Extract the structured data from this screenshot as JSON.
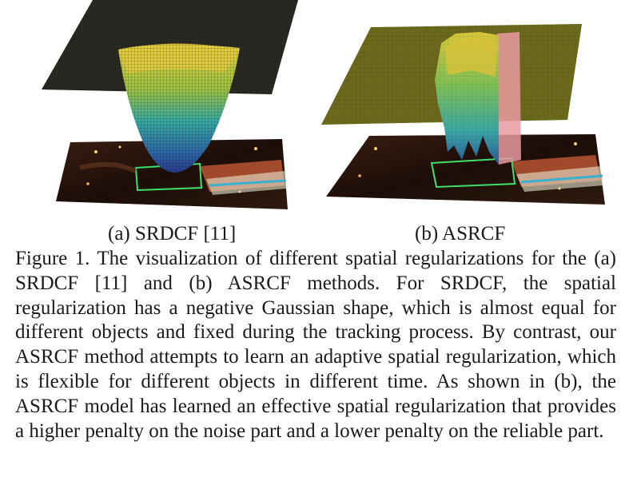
{
  "figure": {
    "panels": [
      {
        "id": "a",
        "label": "(a) SRDCF [11]",
        "shape": "negative gaussian bowl"
      },
      {
        "id": "b",
        "label": "(b) ASRCF",
        "shape": "adaptive learned regularization"
      }
    ]
  },
  "caption": {
    "text": "Figure 1. The visualization of different spatial regularizations for the (a) SRDCF [11] and (b) ASRCF methods. For SRDCF, the spatial regularization has a negative Gaussian shape, which is almost equal for different objects and fixed during the tracking process. By contrast, our ASRCF method attempts to learn an adaptive spatial regularization, which is flexible for different objects in different time. As shown in (b), the ASRCF model has learned an effective spatial regularization that provides a higher penalty on the noise part and a lower penalty on the reliable part."
  },
  "colors": {
    "plane_a": "#2b2a22",
    "plane_b": "#6b6a1c",
    "bowl_top": "#e8d23a",
    "bowl_mid": "#3aa6a0",
    "bowl_bottom": "#2a3a8c",
    "image_bg": "#1a0c08"
  }
}
